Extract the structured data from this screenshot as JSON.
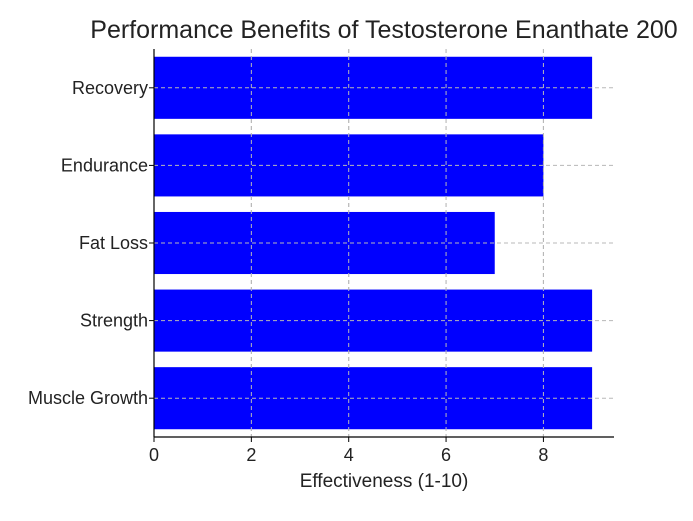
{
  "chart_data": {
    "type": "bar",
    "orientation": "horizontal",
    "title": "Performance Benefits of Testosterone Enanthate 200",
    "xlabel": "Effectiveness (1-10)",
    "ylabel": "",
    "categories": [
      "Muscle Growth",
      "Strength",
      "Fat Loss",
      "Endurance",
      "Recovery"
    ],
    "values": [
      9,
      9,
      7,
      8,
      9
    ],
    "xlim": [
      0,
      9.45
    ],
    "xticks": [
      0,
      2,
      4,
      6,
      8
    ],
    "grid": true,
    "bar_color": "#0000ff"
  }
}
